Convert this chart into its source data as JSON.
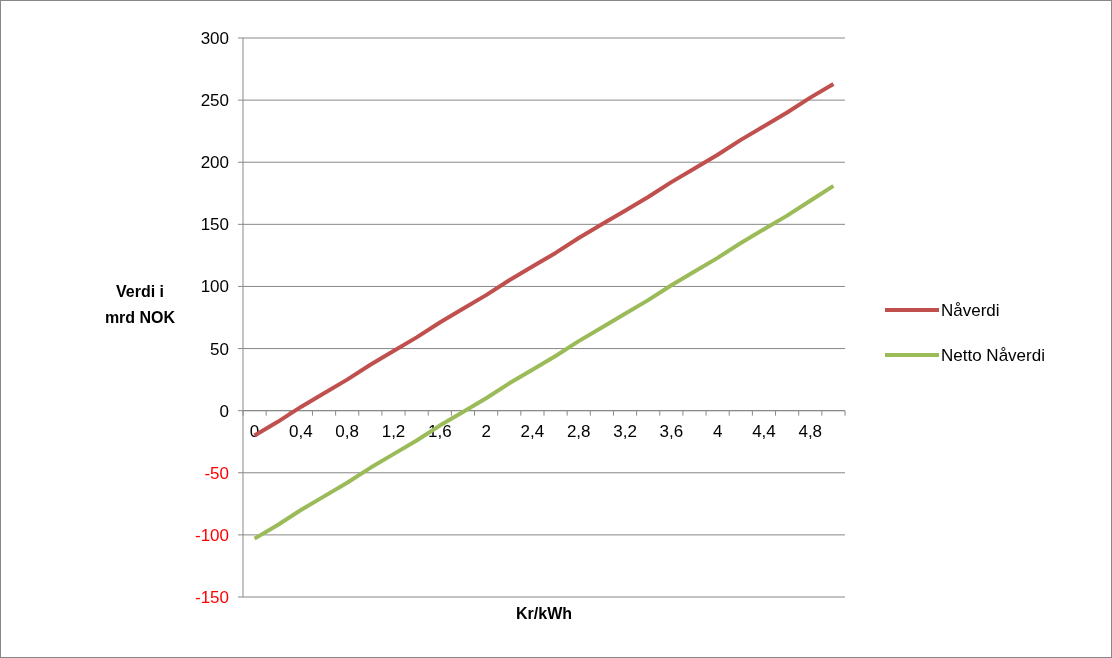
{
  "chart_data": {
    "type": "line",
    "xlabel": "Kr/kWh",
    "ylabel": "Verdi i mrd NOK",
    "categories": [
      "0",
      null,
      "0,4",
      null,
      "0,8",
      null,
      "1,2",
      null,
      "1,6",
      null,
      "2",
      null,
      "2,4",
      null,
      "2,8",
      null,
      "3,2",
      null,
      "3,6",
      null,
      "4",
      null,
      "4,4",
      null,
      "4,8",
      null
    ],
    "series": [
      {
        "name": "Nåverdi",
        "color": "#c0504d",
        "values": [
          -20,
          -9,
          3,
          14,
          25,
          37,
          48,
          59,
          71,
          82,
          93,
          105,
          116,
          127,
          139,
          150,
          161,
          172,
          184,
          195,
          206,
          218,
          229,
          240,
          252,
          263
        ]
      },
      {
        "name": "Netto Nåverdi",
        "color": "#9bbb59",
        "values": [
          -103,
          -92,
          -80,
          -69,
          -58,
          -46,
          -35,
          -24,
          -12,
          -1,
          10,
          22,
          33,
          44,
          56,
          67,
          78,
          89,
          101,
          112,
          123,
          135,
          146,
          157,
          169,
          181
        ]
      }
    ],
    "ylim": [
      -150,
      300
    ],
    "yticks": [
      -150,
      -100,
      -50,
      0,
      50,
      100,
      150,
      200,
      250,
      300
    ],
    "grid": "y",
    "legend": "right",
    "marker": "none",
    "line_style": "solid"
  }
}
